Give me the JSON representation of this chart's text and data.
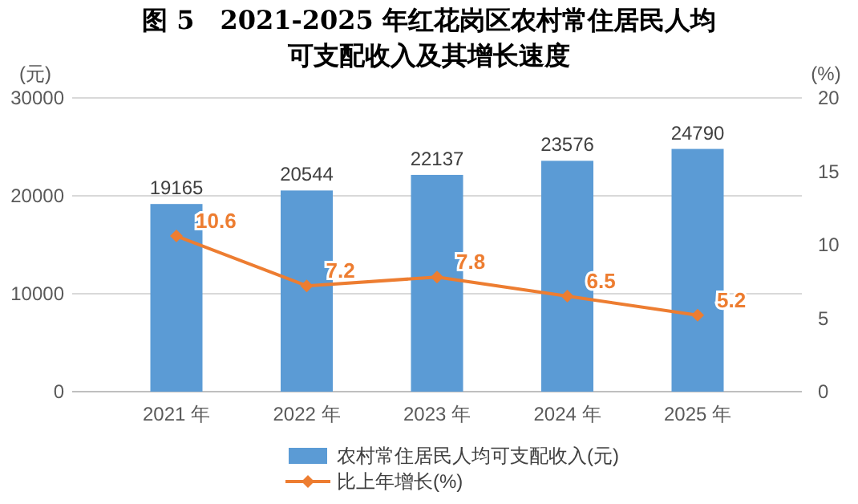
{
  "chart_data": {
    "type": "bar",
    "title": "图 5　2021-2025 年红花岗区农村常住居民人均可支配收入及其增长速度",
    "ylabel": "(元)",
    "y2label": "(%)",
    "categories": [
      "2021 年",
      "2022 年",
      "2023 年",
      "2024 年",
      "2025 年"
    ],
    "series": [
      {
        "name": "农村常住居民人均可支配收入(元)",
        "color": "#5b9bd5",
        "values": [
          19165,
          20544,
          22137,
          23576,
          24790
        ]
      },
      {
        "name": "比上年增长(%)",
        "type": "line",
        "axis": "y2",
        "color": "#ed7d31",
        "marker": "diamond",
        "values": [
          10.6,
          7.2,
          7.8,
          6.5,
          5.2
        ]
      }
    ],
    "ylim": [
      0,
      30000
    ],
    "yticks": [
      0,
      10000,
      20000,
      30000
    ],
    "y2lim": [
      0,
      20
    ],
    "y2ticks": [
      0,
      5,
      10,
      15,
      20
    ],
    "grid": "y",
    "legend": "bottom",
    "data_labels": true
  }
}
